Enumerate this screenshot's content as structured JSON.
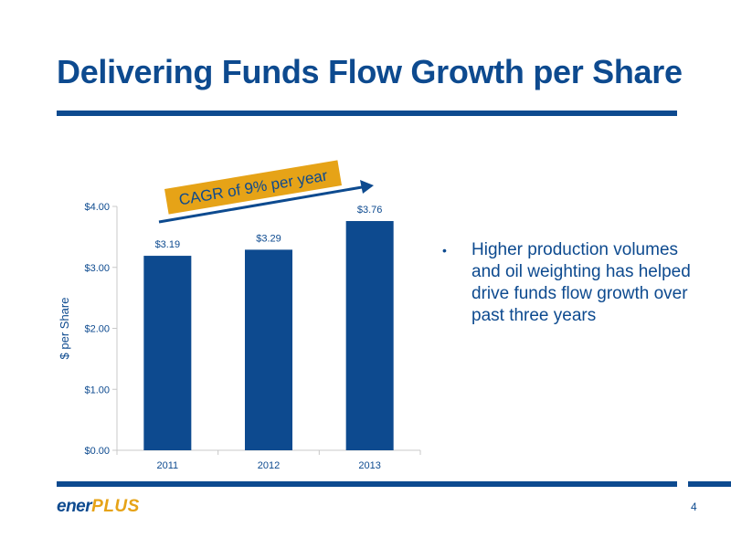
{
  "slide": {
    "title": "Delivering Funds Flow Growth per Share",
    "bullet": "Higher production volumes and oil weighting has helped drive funds flow growth over past three years",
    "bullet_marker": "•",
    "page_number": "4",
    "logo_part1": "ener",
    "logo_part2": "PLUS",
    "accent_color": "#0d4a8f",
    "highlight_color": "#e6a317"
  },
  "chart_data": {
    "type": "bar",
    "categories": [
      "2011",
      "2012",
      "2013"
    ],
    "values": [
      3.19,
      3.29,
      3.76
    ],
    "value_labels": [
      "$3.19",
      "$3.29",
      "$3.76"
    ],
    "ylabel": "$ per Share",
    "ylim": [
      0,
      4
    ],
    "yticks": [
      0,
      1,
      2,
      3,
      4
    ],
    "ytick_labels": [
      "$0.00",
      "$1.00",
      "$2.00",
      "$3.00",
      "$4.00"
    ],
    "annotation": "CAGR of 9% per year",
    "grid": false,
    "bar_color": "#0d4a8f"
  }
}
